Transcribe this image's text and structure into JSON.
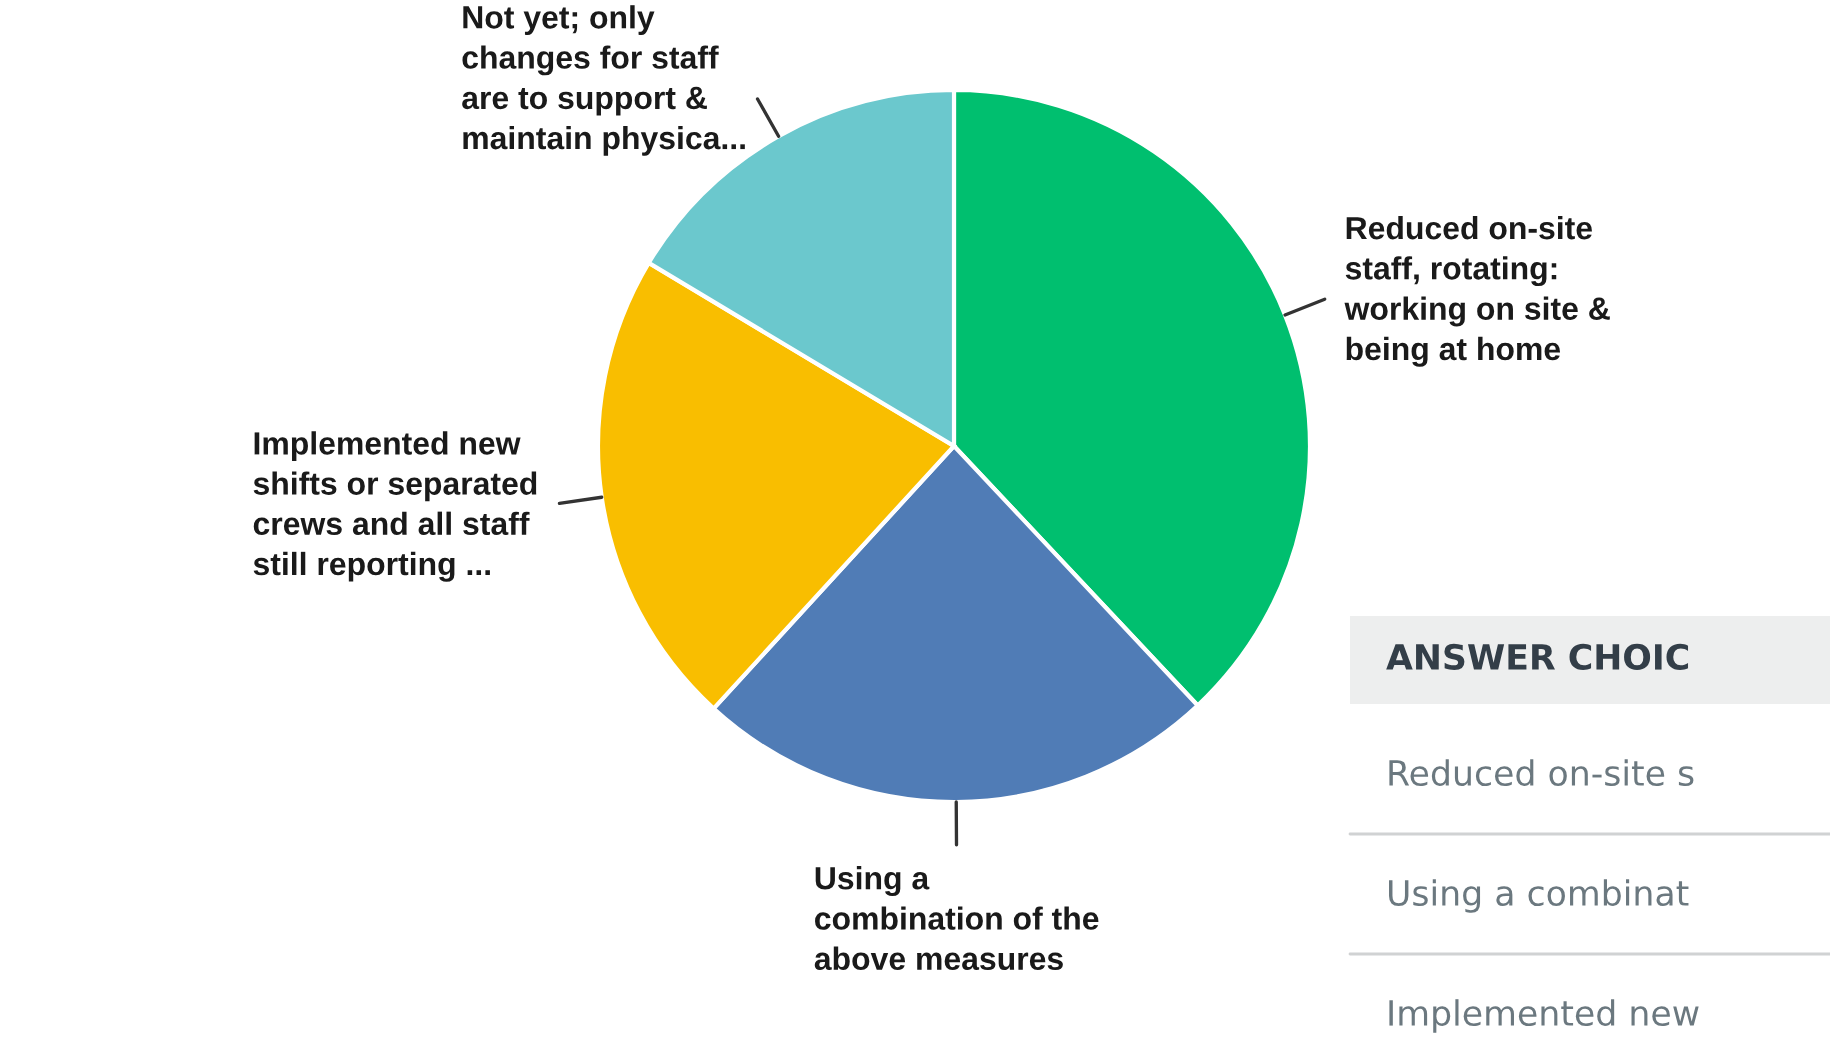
{
  "chart_data": {
    "type": "pie",
    "categories": [
      "Reduced on-site\nstaff, rotating:\nworking on site &\nbeing at home",
      "Using a\ncombination of the\nabove measures",
      "Implemented new\nshifts or separated\ncrews and all staff\nstill reporting ...",
      "Not yet; only\nchanges for staff\nare to support &\nmaintain physica..."
    ],
    "values": [
      38,
      23.8,
      21.8,
      16.4
    ],
    "colors": [
      "#00bf6f",
      "#507cb6",
      "#f9be00",
      "#6bc8cd"
    ],
    "annotations": [
      "ANSWER CHOIC",
      "Reduced on-site s",
      "Using a combinat",
      "Implemented new"
    ]
  }
}
